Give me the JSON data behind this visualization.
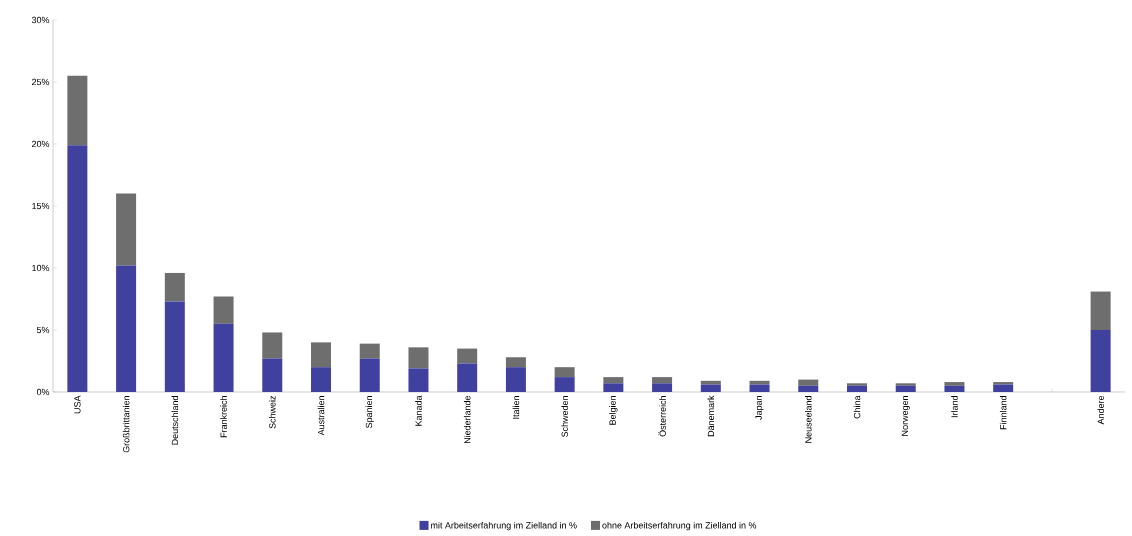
{
  "chart_data": {
    "type": "bar",
    "stacked": true,
    "categories": [
      "USA",
      "Großbrittanien",
      "Deutschland",
      "Frankreich",
      "Schweiz",
      "Australien",
      "Spanien",
      "Kanada",
      "Niederlande",
      "Italien",
      "Schweden",
      "Belgien",
      "Österreich",
      "Dänemark",
      "Japan",
      "Neuseeland",
      "China",
      "Norwegen",
      "Irland",
      "Finnland",
      null,
      "Andere"
    ],
    "series": [
      {
        "name": "mit Arbeitserfahrung im Zielland in %",
        "color": "#40409e",
        "values": [
          19.9,
          10.2,
          7.3,
          5.5,
          2.7,
          2.0,
          2.7,
          1.9,
          2.3,
          2.0,
          1.2,
          0.7,
          0.7,
          0.6,
          0.6,
          0.5,
          0.5,
          0.5,
          0.5,
          0.6,
          null,
          5.0
        ]
      },
      {
        "name": "ohne Arbeitserfahrung im Zielland in %",
        "color": "#6e6e6e",
        "values": [
          5.6,
          5.8,
          2.3,
          2.2,
          2.1,
          2.0,
          1.2,
          1.7,
          1.2,
          0.8,
          0.8,
          0.5,
          0.5,
          0.3,
          0.3,
          0.5,
          0.2,
          0.2,
          0.3,
          0.2,
          null,
          3.1
        ]
      }
    ],
    "ylim": [
      0,
      30
    ],
    "yticks": [
      {
        "value": 0,
        "label": "0%"
      },
      {
        "value": 5,
        "label": "5%"
      },
      {
        "value": 10,
        "label": "10%"
      },
      {
        "value": 15,
        "label": "15%"
      },
      {
        "value": 20,
        "label": "20%"
      },
      {
        "value": 25,
        "label": "25%"
      },
      {
        "value": 30,
        "label": "30%"
      }
    ],
    "legend": "bottom"
  }
}
